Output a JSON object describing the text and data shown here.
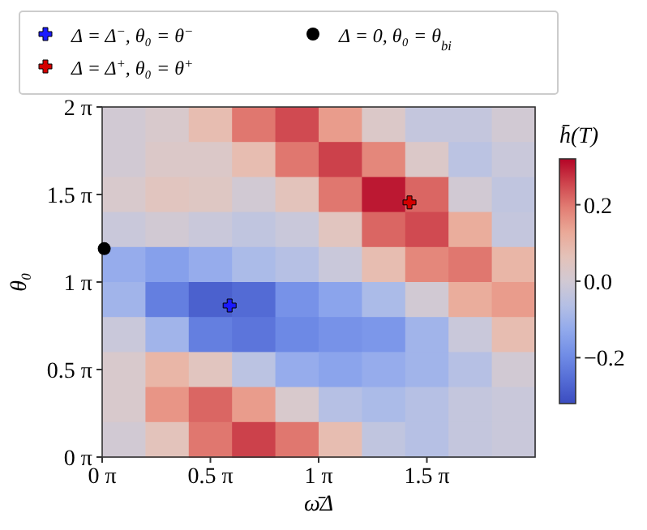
{
  "chart_data": {
    "type": "heatmap",
    "xlabel": "ω̄Δ",
    "ylabel": "θ₀",
    "clabel": "h̄(T)",
    "xlim": [
      0,
      6.2832
    ],
    "ylim": [
      0,
      6.2832
    ],
    "xticks": [
      {
        "value": 0,
        "label": "0 π"
      },
      {
        "value": 1.5708,
        "label": "0.5 π"
      },
      {
        "value": 3.1416,
        "label": "1 π"
      },
      {
        "value": 4.7124,
        "label": "1.5 π"
      }
    ],
    "yticks": [
      {
        "value": 0,
        "label": "0 π"
      },
      {
        "value": 1.5708,
        "label": "0.5 π"
      },
      {
        "value": 3.1416,
        "label": "1 π"
      },
      {
        "value": 4.7124,
        "label": "1.5 π"
      },
      {
        "value": 6.2832,
        "label": "2 π"
      }
    ],
    "clim": [
      -0.32,
      0.32
    ],
    "cticks": [
      {
        "value": -0.2,
        "label": "−0.2"
      },
      {
        "value": 0,
        "label": "0.0"
      },
      {
        "value": 0.2,
        "label": "0.2"
      }
    ],
    "cells": [
      [
        0.0,
        0.02,
        0.08,
        0.2,
        0.25,
        0.15,
        0.03,
        -0.03,
        -0.03,
        0.0
      ],
      [
        0.0,
        0.03,
        0.03,
        0.08,
        0.2,
        0.26,
        0.18,
        0.03,
        -0.05,
        -0.02
      ],
      [
        0.02,
        0.05,
        0.04,
        0.0,
        0.06,
        0.2,
        0.3,
        0.22,
        0.0,
        -0.04
      ],
      [
        -0.02,
        0.0,
        -0.02,
        -0.04,
        -0.02,
        0.05,
        0.22,
        0.25,
        0.12,
        -0.03
      ],
      [
        -0.12,
        -0.15,
        -0.12,
        -0.08,
        -0.06,
        -0.02,
        0.08,
        0.18,
        0.2,
        0.1
      ],
      [
        -0.1,
        -0.22,
        -0.28,
        -0.26,
        -0.18,
        -0.14,
        -0.08,
        0.0,
        0.12,
        0.15
      ],
      [
        -0.02,
        -0.1,
        -0.22,
        -0.24,
        -0.2,
        -0.18,
        -0.17,
        -0.1,
        -0.02,
        0.08
      ],
      [
        0.02,
        0.1,
        0.05,
        -0.05,
        -0.12,
        -0.14,
        -0.12,
        -0.1,
        -0.06,
        0.0
      ],
      [
        0.02,
        0.16,
        0.22,
        0.15,
        0.02,
        -0.06,
        -0.08,
        -0.06,
        -0.03,
        -0.02
      ],
      [
        0.0,
        0.06,
        0.2,
        0.26,
        0.2,
        0.08,
        -0.04,
        -0.06,
        -0.03,
        -0.02
      ]
    ],
    "series": [
      {
        "type": "scatter",
        "name": "Δ = Δ$^{−}$,  θ₀ = θ$^{−}$",
        "color": "#1a1aff",
        "marker": "cross",
        "x": [
          1.85
        ],
        "values": [
          2.72
        ]
      },
      {
        "type": "scatter",
        "name": "Δ = Δ$^{+}$,  θ₀ = θ$^{+}$",
        "color": "#d40000",
        "marker": "cross",
        "x": [
          4.46
        ],
        "values": [
          4.57
        ]
      },
      {
        "type": "scatter",
        "name": "Δ = 0,  θ₀ = θ$_{bi}$",
        "color": "#000000",
        "marker": "circle",
        "x": [
          0.03
        ],
        "values": [
          3.74
        ]
      }
    ],
    "legend": "top"
  }
}
